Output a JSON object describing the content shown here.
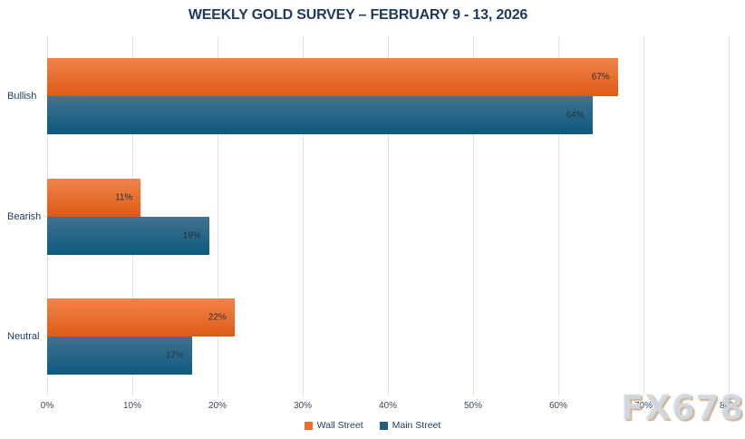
{
  "title": "WEEKLY GOLD SURVEY – FEBRUARY 9 - 13, 2026",
  "watermark": "FX678",
  "chart_data": {
    "type": "bar",
    "orientation": "horizontal",
    "title": "WEEKLY GOLD SURVEY – FEBRUARY 9 - 13, 2026",
    "categories": [
      "Bullish",
      "Bearish",
      "Neutral"
    ],
    "series": [
      {
        "name": "Wall Street",
        "values": [
          67,
          11,
          22
        ],
        "color": "#E8702A"
      },
      {
        "name": "Main Street",
        "values": [
          64,
          19,
          17
        ],
        "color": "#20607F"
      }
    ],
    "value_suffix": "%",
    "xlabel": "",
    "ylabel": "",
    "xlim": [
      0,
      80
    ],
    "x_ticks": [
      "0%",
      "10%",
      "20%",
      "30%",
      "40%",
      "50%",
      "60%",
      "70%",
      "80%"
    ],
    "grid": "vertical",
    "legend_position": "bottom",
    "data_labels": "inside-end"
  }
}
